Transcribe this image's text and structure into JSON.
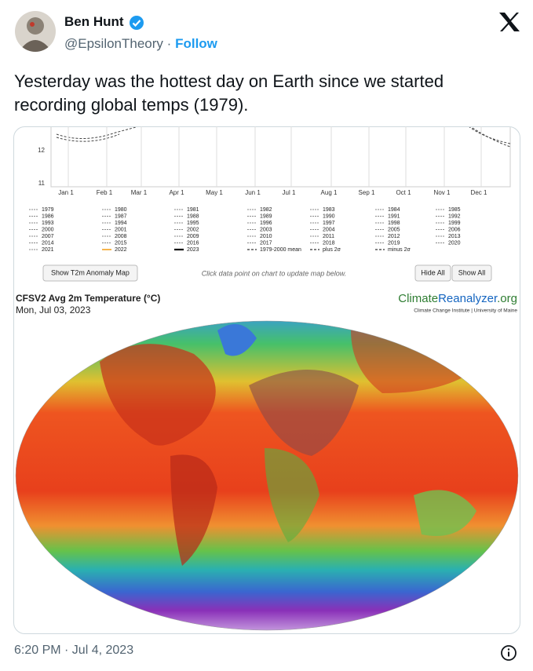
{
  "author": {
    "name": "Ben Hunt",
    "handle": "@EpsilonTheory",
    "separator": "·",
    "follow": "Follow"
  },
  "tweet": {
    "lines": [
      "Yesterday was the hottest day on Earth since we started",
      "recording global temps (1979)."
    ],
    "timestamp": "6:20 PM · Jul 4, 2023"
  },
  "image": {
    "y_labels": [
      "12",
      "11"
    ],
    "months": [
      "Jan 1",
      "Feb 1",
      "Mar 1",
      "Apr 1",
      "May 1",
      "Jun 1",
      "Jul 1",
      "Aug 1",
      "Sep 1",
      "Oct 1",
      "Nov 1",
      "Dec 1"
    ],
    "legend": [
      [
        "1979",
        "1986",
        "1993",
        "2000",
        "2007",
        "2014",
        "2021"
      ],
      [
        "1980",
        "1987",
        "1994",
        "2001",
        "2008",
        "2015",
        "2022"
      ],
      [
        "1981",
        "1988",
        "1995",
        "2002",
        "2009",
        "2016",
        "2023"
      ],
      [
        "1982",
        "1989",
        "1996",
        "2003",
        "2010",
        "2017",
        "1979-2000 mean"
      ],
      [
        "1983",
        "1990",
        "1997",
        "2004",
        "2011",
        "2018",
        "plus 2σ"
      ],
      [
        "1984",
        "1991",
        "1998",
        "2005",
        "2012",
        "2019",
        "minus 2σ"
      ],
      [
        "1985",
        "1992",
        "1999",
        "2006",
        "2013",
        "2020"
      ]
    ],
    "anomaly_button": "Show T2m Anomaly Map",
    "hint": "Click data point on chart to update map below.",
    "hide_all": "Hide All",
    "show_all": "Show All",
    "map_title": "CFSV2 Avg 2m Temperature (°C)",
    "map_date": "Mon, Jul 03, 2023",
    "brand": {
      "a": "Climate",
      "b": "Reanalyzer",
      "c": ".org"
    },
    "brand_sub": "Climate Change Institute | University of Maine"
  }
}
